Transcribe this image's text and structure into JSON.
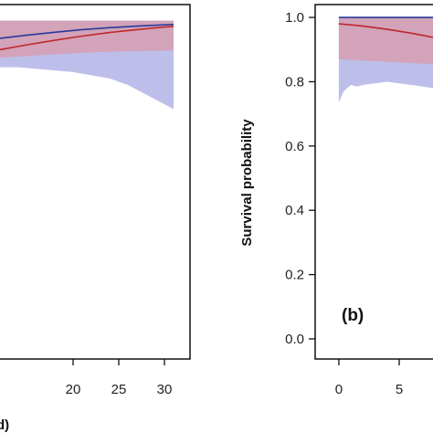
{
  "chart_data": [
    {
      "type": "line",
      "panel": "left",
      "xlabel_fragment": "d)",
      "x_ticks": [
        "20",
        "25",
        "30"
      ],
      "xlim": [
        12,
        31.5
      ],
      "ylim": [
        -0.02,
        1.04
      ],
      "series": [
        {
          "color": "#2b3a9c",
          "x": [
            12,
            15,
            18,
            21,
            24,
            27,
            30,
            31
          ],
          "y": [
            0.935,
            0.945,
            0.954,
            0.962,
            0.968,
            0.973,
            0.977,
            0.978
          ]
        },
        {
          "color": "#c0272d",
          "x": [
            12,
            15,
            18,
            21,
            24,
            27,
            30,
            31
          ],
          "y": [
            0.9,
            0.915,
            0.929,
            0.942,
            0.953,
            0.962,
            0.97,
            0.972
          ]
        }
      ],
      "bands": [
        {
          "color": "#b3b3e6",
          "x": [
            12,
            14,
            16,
            18,
            20,
            22,
            24,
            26,
            28,
            30,
            31
          ],
          "lo": [
            0.845,
            0.845,
            0.84,
            0.835,
            0.83,
            0.82,
            0.81,
            0.79,
            0.76,
            0.73,
            0.715
          ],
          "hi": [
            0.99,
            0.99,
            0.99,
            0.99,
            0.99,
            0.99,
            0.99,
            0.99,
            0.99,
            0.99,
            0.99
          ]
        },
        {
          "color": "#d89aa8",
          "x": [
            12,
            15,
            18,
            21,
            24,
            27,
            30,
            31
          ],
          "lo": [
            0.875,
            0.88,
            0.885,
            0.89,
            0.893,
            0.895,
            0.897,
            0.897
          ],
          "hi": [
            0.99,
            0.99,
            0.99,
            0.99,
            0.99,
            0.99,
            0.99,
            0.99
          ]
        }
      ]
    },
    {
      "type": "line",
      "panel": "right",
      "panel_label": "(b)",
      "ylabel": "Survival probability",
      "y_ticks": [
        "0.0",
        "0.2",
        "0.4",
        "0.6",
        "0.8",
        "1.0"
      ],
      "x_ticks": [
        "0",
        "5"
      ],
      "xlim": [
        -0.6,
        7.8
      ],
      "ylim": [
        -0.02,
        1.04
      ],
      "series": [
        {
          "color": "#2b3a9c",
          "x": [
            0,
            1,
            2,
            3,
            4,
            5,
            6,
            7.8
          ],
          "y": [
            1.0,
            1.0,
            1.0,
            1.0,
            1.0,
            1.0,
            1.0,
            1.0
          ]
        },
        {
          "color": "#c0272d",
          "x": [
            0,
            1,
            2,
            3,
            4,
            5,
            6,
            7,
            7.8
          ],
          "y": [
            0.98,
            0.977,
            0.973,
            0.968,
            0.963,
            0.957,
            0.951,
            0.944,
            0.938
          ]
        }
      ],
      "bands": [
        {
          "color": "#b3b3e6",
          "x": [
            0,
            0.4,
            1,
            1.5,
            2,
            3,
            4,
            5,
            6,
            7,
            7.8
          ],
          "lo": [
            0.735,
            0.77,
            0.79,
            0.785,
            0.79,
            0.795,
            0.8,
            0.795,
            0.79,
            0.785,
            0.78
          ],
          "hi": [
            1.0,
            1.0,
            1.0,
            1.0,
            1.0,
            1.0,
            1.0,
            1.0,
            1.0,
            1.0,
            1.0
          ]
        },
        {
          "color": "#d89aa8",
          "x": [
            0,
            1,
            2,
            3,
            4,
            5,
            6,
            7,
            7.8
          ],
          "lo": [
            0.87,
            0.868,
            0.866,
            0.864,
            0.862,
            0.86,
            0.858,
            0.856,
            0.855
          ],
          "hi": [
            1.0,
            1.0,
            1.0,
            1.0,
            1.0,
            1.0,
            1.0,
            1.0,
            1.0
          ]
        }
      ]
    }
  ]
}
